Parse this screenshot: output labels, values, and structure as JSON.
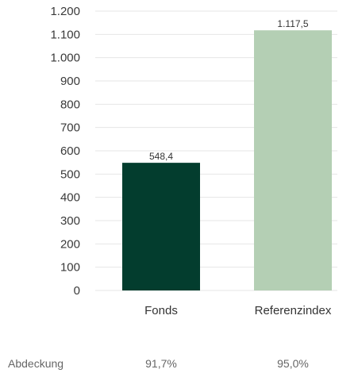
{
  "chart_data": {
    "type": "bar",
    "categories": [
      "Fonds",
      "Referenzindex"
    ],
    "values": [
      548.4,
      1117.5
    ],
    "value_labels": [
      "548,4",
      "1.117,5"
    ],
    "colors": [
      "#033d2e",
      "#b4cfb4"
    ],
    "ylim": [
      0,
      1200
    ],
    "yticks": [
      0,
      100,
      200,
      300,
      400,
      500,
      600,
      700,
      800,
      900,
      1000,
      1100,
      1200
    ],
    "ytick_labels": [
      "0",
      "100",
      "200",
      "300",
      "400",
      "500",
      "600",
      "700",
      "800",
      "900",
      "1.000",
      "1.100",
      "1.200"
    ],
    "grid": true,
    "title": "",
    "xlabel": "",
    "ylabel": ""
  },
  "coverage": {
    "label": "Abdeckung",
    "values": [
      "91,7%",
      "95,0%"
    ]
  }
}
